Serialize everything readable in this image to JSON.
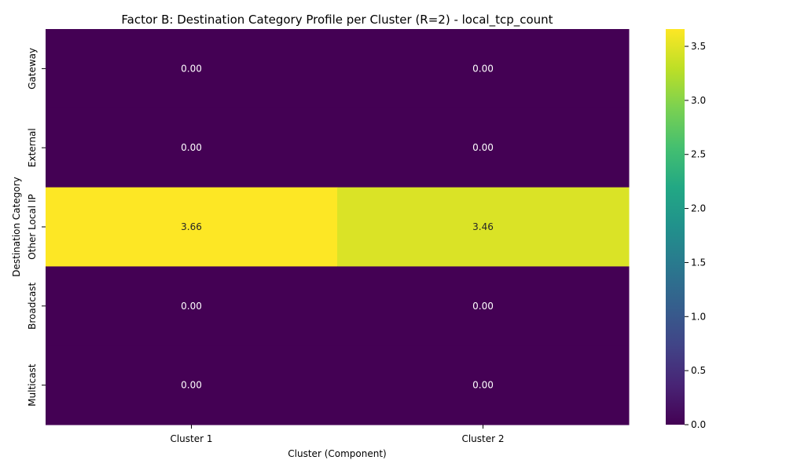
{
  "chart_data": {
    "type": "heatmap",
    "title": "Factor B: Destination Category Profile per Cluster (R=2) - local_tcp_count",
    "xlabel": "Cluster (Component)",
    "ylabel": "Destination Category",
    "x_categories": [
      "Cluster 1",
      "Cluster 2"
    ],
    "y_categories": [
      "Gateway",
      "External",
      "Other Local IP",
      "Broadcast",
      "Multicast"
    ],
    "values": [
      [
        0.0,
        0.0
      ],
      [
        0.0,
        0.0
      ],
      [
        3.66,
        3.46
      ],
      [
        0.0,
        0.0
      ],
      [
        0.0,
        0.0
      ]
    ],
    "cell_labels": [
      [
        "0.00",
        "0.00"
      ],
      [
        "0.00",
        "0.00"
      ],
      [
        "3.66",
        "3.46"
      ],
      [
        "0.00",
        "0.00"
      ],
      [
        "0.00",
        "0.00"
      ]
    ],
    "colormap": "viridis",
    "colorbar": {
      "vmin": 0.0,
      "vmax": 3.66,
      "ticks": [
        0.0,
        0.5,
        1.0,
        1.5,
        2.0,
        2.5,
        3.0,
        3.5
      ],
      "tick_labels": [
        "0.0",
        "0.5",
        "1.0",
        "1.5",
        "2.0",
        "2.5",
        "3.0",
        "3.5"
      ]
    },
    "colors": {
      "low": "#440154",
      "high": "#fde725",
      "text_on_dark": "#ffffff",
      "text_on_light": "#262626"
    }
  }
}
